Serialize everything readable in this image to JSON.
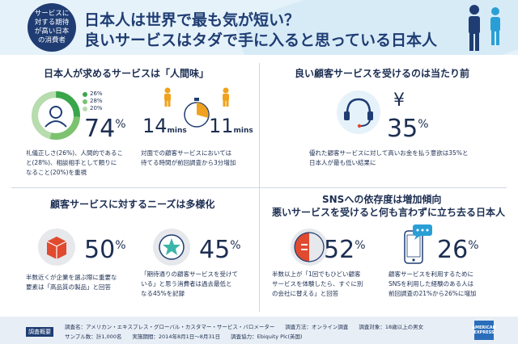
{
  "header": {
    "badge_lines": [
      "サービスに",
      "対する期待",
      "が高い日本",
      "の消費者"
    ],
    "title_line1": "日本人は世界で最も気が短い？",
    "title_line2": "良いサービスはタダで手に入ると思っている日本人"
  },
  "panel1": {
    "title": "日本人が求めるサービスは「人間味」",
    "donut": {
      "segments": [
        {
          "label": "26%",
          "value": 26,
          "color": "#3aa64b"
        },
        {
          "label": "28%",
          "value": 28,
          "color": "#7cc26f"
        },
        {
          "label": "20%",
          "value": 20,
          "color": "#b7dcae"
        }
      ]
    },
    "big_value": "74",
    "big_unit": "%",
    "note_lines": [
      "礼儀正しさ(26%)、人間的であるこ",
      "と(28%)、相談相手として頼りに",
      "なること(20%)を重視"
    ]
  },
  "panel1b": {
    "value_before": "14",
    "value_after": "11",
    "unit": "mins",
    "note_lines": [
      "対面での顧客サービスにおいては",
      "待てる時間が前回調査から3分増加"
    ]
  },
  "panel2": {
    "title": "良い顧客サービスを受けるのは当たり前",
    "yen_symbol": "¥",
    "big_value": "35",
    "big_unit": "%",
    "note_lines": [
      "優れた顧客サービスに対して高いお金を払う意欲は35%と",
      "日本人が最も低い結果に"
    ]
  },
  "panel3": {
    "title": "顧客サービスに対するニーズは多様化",
    "item1": {
      "value": "50",
      "unit": "%",
      "note_lines": [
        "半数近くが企業を選ぶ際に重要な",
        "要素は「高品質の製品」と回答"
      ]
    },
    "item2": {
      "value": "45",
      "unit": "%",
      "note_lines": [
        "「期待通りの顧客サービスを受けて",
        "いる」と思う消費者は過去最低と",
        "なる45%を記録"
      ]
    }
  },
  "panel4": {
    "title_line1": "SNSへの依存度は増加傾向",
    "title_line2": "悪いサービスを受けると何も言わずに立ち去る日本人",
    "item1": {
      "value": "52",
      "unit": "%",
      "note_lines": [
        "半数以上が「1回でもひどい顧客",
        "サービスを体験したら、すぐに別",
        "の会社に替える」と回答"
      ]
    },
    "item2": {
      "value": "26",
      "unit": "%",
      "note_lines": [
        "顧客サービスを利用するために",
        "SNSを利用した経験のある人は",
        "前回調査の21%から26%に増加"
      ]
    }
  },
  "footer": {
    "tag": "調査概要",
    "line1": "調査名：アメリカン・エキスプレス・グローバル・カスタマー・サービス・バロメーター　　調査方法：オンライン調査　　調査対象：18歳以上の男女",
    "line2": "サンプル数：計1,000名　　実施期間：2014年8月1日～8月31日　　調査協力：Ebiquity Plc(英国)",
    "logo_lines": [
      "AMERICAN",
      "EXPRESS"
    ]
  },
  "colors": {
    "navy": "#1f3d73",
    "green": "#3aa64b",
    "orange": "#f0a21e",
    "red": "#e04a2f",
    "teal": "#3bb6a8",
    "blue": "#2a6ebb"
  }
}
